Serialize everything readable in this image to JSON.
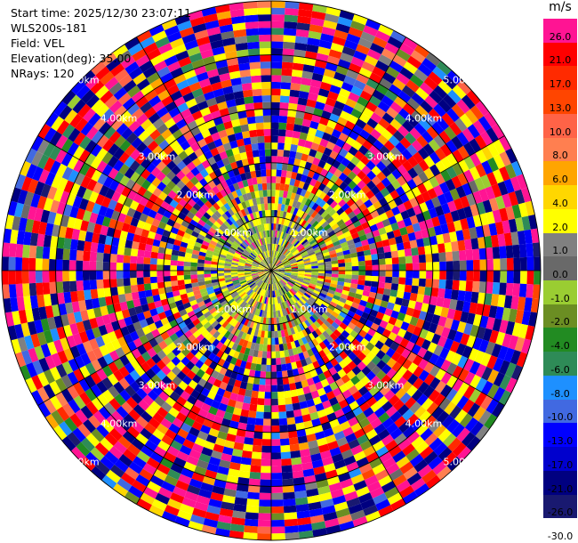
{
  "info": {
    "start_time": "Start time: 2025/12/30 23:07:11",
    "station": "WLS200s-181",
    "field": "Field: VEL",
    "elevation": "Elevation(deg): 35.00",
    "nrays": "NRays: 120"
  },
  "colorbar": {
    "unit": "m/s",
    "levels": [
      {
        "label": "26.0",
        "color": "#ff1493"
      },
      {
        "label": "21.0",
        "color": "#ff0000"
      },
      {
        "label": "17.0",
        "color": "#ff2a00"
      },
      {
        "label": "13.0",
        "color": "#ff4500"
      },
      {
        "label": "10.0",
        "color": "#ff6347"
      },
      {
        "label": "8.0",
        "color": "#ff7f50"
      },
      {
        "label": "6.0",
        "color": "#ffa500"
      },
      {
        "label": "4.0",
        "color": "#ffd700"
      },
      {
        "label": "2.0",
        "color": "#ffff00"
      },
      {
        "label": "1.0",
        "color": "#808080"
      },
      {
        "label": "0.0",
        "color": "#696969"
      },
      {
        "label": "-1.0",
        "color": "#9acd32"
      },
      {
        "label": "-2.0",
        "color": "#6b8e23"
      },
      {
        "label": "-4.0",
        "color": "#228b22"
      },
      {
        "label": "-6.0",
        "color": "#2e8b57"
      },
      {
        "label": "-8.0",
        "color": "#1e90ff"
      },
      {
        "label": "-10.0",
        "color": "#4169e1"
      },
      {
        "label": "-13.0",
        "color": "#0000ff"
      },
      {
        "label": "-17.0",
        "color": "#0000cd"
      },
      {
        "label": "-21.0",
        "color": "#000080"
      },
      {
        "label": "-26.0",
        "color": "#191970"
      },
      {
        "label": "-30.0",
        "color": "#ffffff"
      }
    ]
  },
  "range_rings": [
    {
      "label": "1.00km",
      "distance_km": 1
    },
    {
      "label": "2.00km",
      "distance_km": 2
    },
    {
      "label": "3.00km",
      "distance_km": 3
    },
    {
      "label": "4.00km",
      "distance_km": 4
    },
    {
      "label": "5.00km",
      "distance_km": 5
    }
  ],
  "chart_data": {
    "type": "heatmap",
    "field": "VEL",
    "unit": "m/s",
    "nrays": 120,
    "elevation_deg": 35.0,
    "max_range_km": 5.0,
    "ring_spacing_km": 1.0,
    "near_range_dominant_colors": [
      "#808080",
      "#9acd32",
      "#ffff00"
    ],
    "far_range_dominant_colors": [
      "#ff1493",
      "#0000ff",
      "#ff0000",
      "#ffff00",
      "#000080"
    ]
  }
}
